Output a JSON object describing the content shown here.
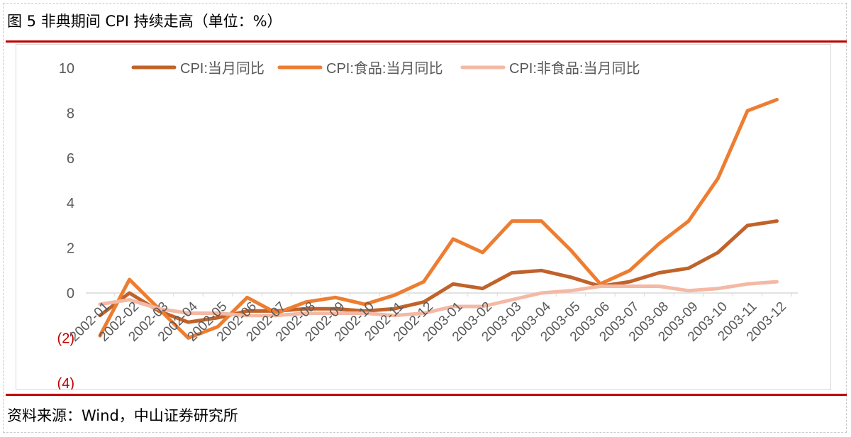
{
  "header": {
    "title": "图 5 非典期间 CPI 持续走高（单位：%）"
  },
  "footer": {
    "source": "资料来源：Wind，中山证券研究所"
  },
  "chart_data": {
    "type": "line",
    "title": "",
    "xlabel": "",
    "ylabel": "",
    "ylim": [
      -4,
      10
    ],
    "y_ticks": [
      10,
      8,
      6,
      4,
      2,
      0,
      -2,
      -4
    ],
    "y_tick_labels": [
      "10",
      "8",
      "6",
      "4",
      "2",
      "0",
      "(2)",
      "(4)"
    ],
    "grid": false,
    "legend_position": "top",
    "categories": [
      "2002-01",
      "2002-02",
      "2002-03",
      "2002-04",
      "2002-05",
      "2002-06",
      "2002-07",
      "2002-08",
      "2002-09",
      "2002-10",
      "2002-11",
      "2002-12",
      "2003-01",
      "2003-02",
      "2003-03",
      "2003-04",
      "2003-05",
      "2003-06",
      "2003-07",
      "2003-08",
      "2003-09",
      "2003-10",
      "2003-11",
      "2003-12"
    ],
    "series": [
      {
        "name": "CPI:当月同比",
        "color": "#c0622a",
        "values": [
          -1.0,
          0.0,
          -0.8,
          -1.3,
          -1.1,
          -0.8,
          -0.8,
          -0.7,
          -0.7,
          -0.8,
          -0.7,
          -0.4,
          0.4,
          0.2,
          0.9,
          1.0,
          0.7,
          0.3,
          0.5,
          0.9,
          1.1,
          1.8,
          3.0,
          3.2
        ]
      },
      {
        "name": "CPI:食品:当月同比",
        "color": "#ed7d31",
        "values": [
          -1.9,
          0.6,
          -0.7,
          -2.0,
          -1.5,
          -0.2,
          -0.9,
          -0.4,
          -0.2,
          -0.5,
          -0.1,
          0.5,
          2.4,
          1.8,
          3.2,
          3.2,
          1.9,
          0.4,
          1.0,
          2.2,
          3.2,
          5.1,
          8.1,
          8.6
        ]
      },
      {
        "name": "CPI:非食品:当月同比",
        "color": "#f4b9a4",
        "values": [
          -0.5,
          -0.3,
          -0.7,
          -0.9,
          -0.9,
          -1.0,
          -1.0,
          -0.9,
          -0.9,
          -0.9,
          -1.0,
          -0.9,
          -0.6,
          -0.6,
          -0.3,
          0.0,
          0.1,
          0.3,
          0.3,
          0.3,
          0.1,
          0.2,
          0.4,
          0.5
        ]
      }
    ]
  }
}
